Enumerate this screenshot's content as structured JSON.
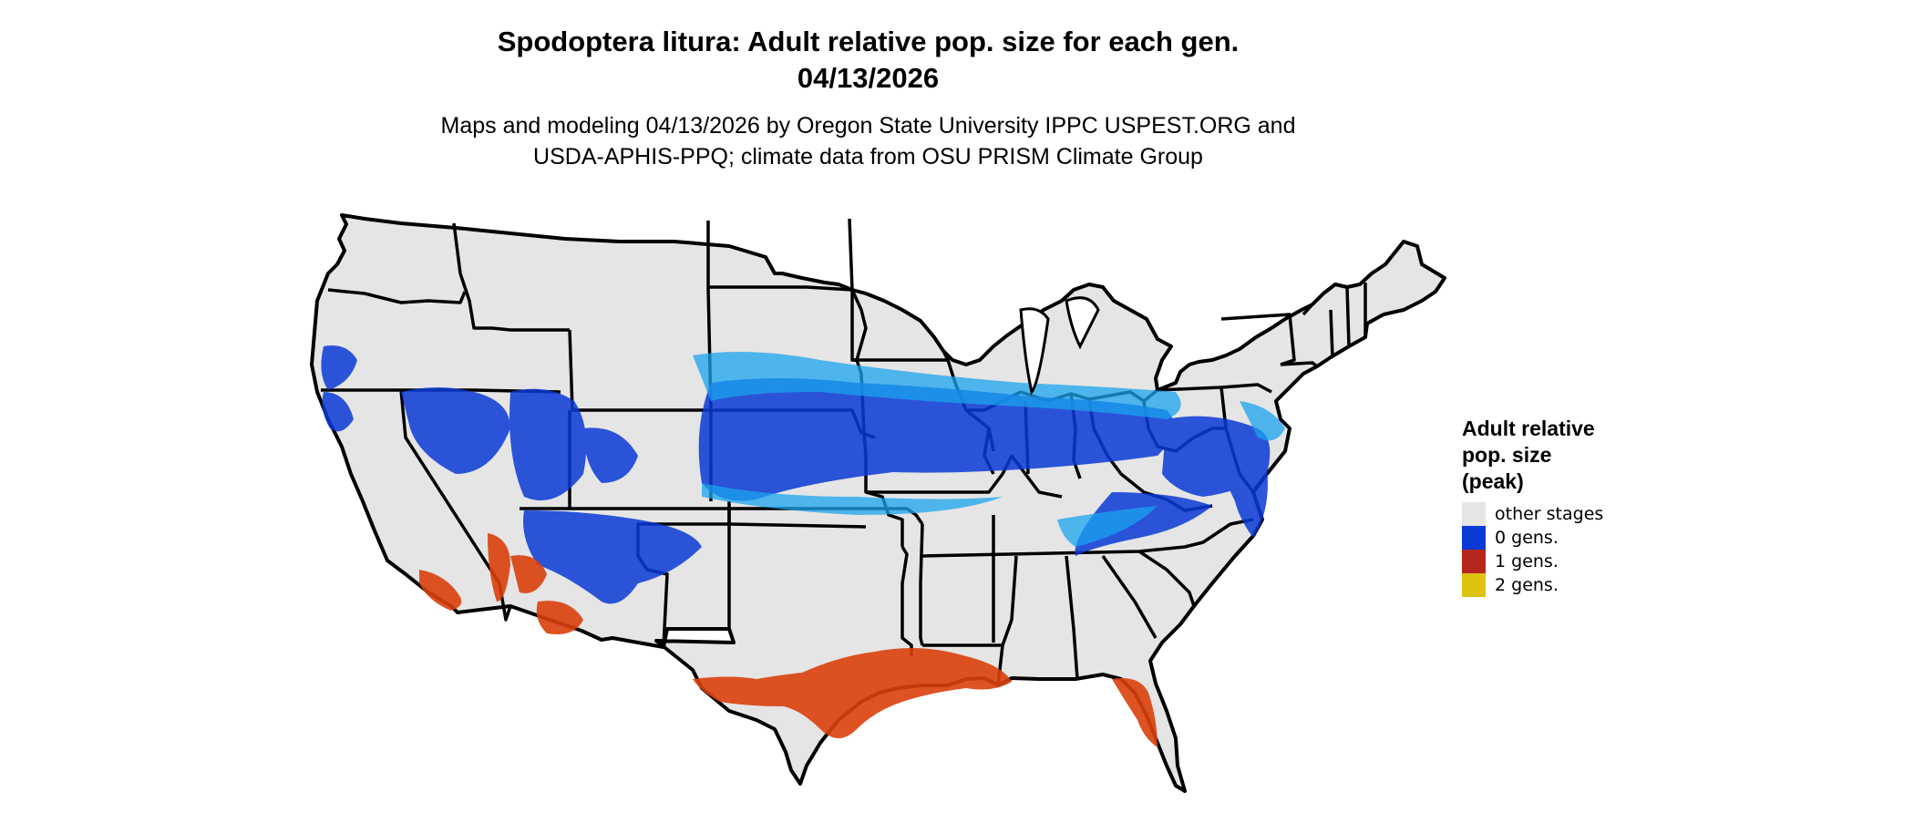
{
  "title": {
    "line1": "Spodoptera litura: Adult relative pop. size for each gen.",
    "line2": "04/13/2026"
  },
  "subtitle": {
    "line1": "Maps and modeling 04/13/2026 by Oregon State University IPPC USPEST.ORG and",
    "line2": "USDA-APHIS-PPQ; climate data from OSU PRISM Climate Group"
  },
  "map": {
    "region": "contiguous-us",
    "background_color": "#e5e5e5",
    "border_color": "#000000"
  },
  "legend": {
    "title_line1": "Adult relative",
    "title_line2": "pop. size",
    "title_line3": "(peak)",
    "items": [
      {
        "label": "other stages",
        "color": "#e5e5e5"
      },
      {
        "label": "0 gens.",
        "color": "#0a3ad6"
      },
      {
        "label": "1 gens.",
        "color": "#b5261c"
      },
      {
        "label": "2 gens.",
        "color": "#ddc310"
      }
    ]
  }
}
